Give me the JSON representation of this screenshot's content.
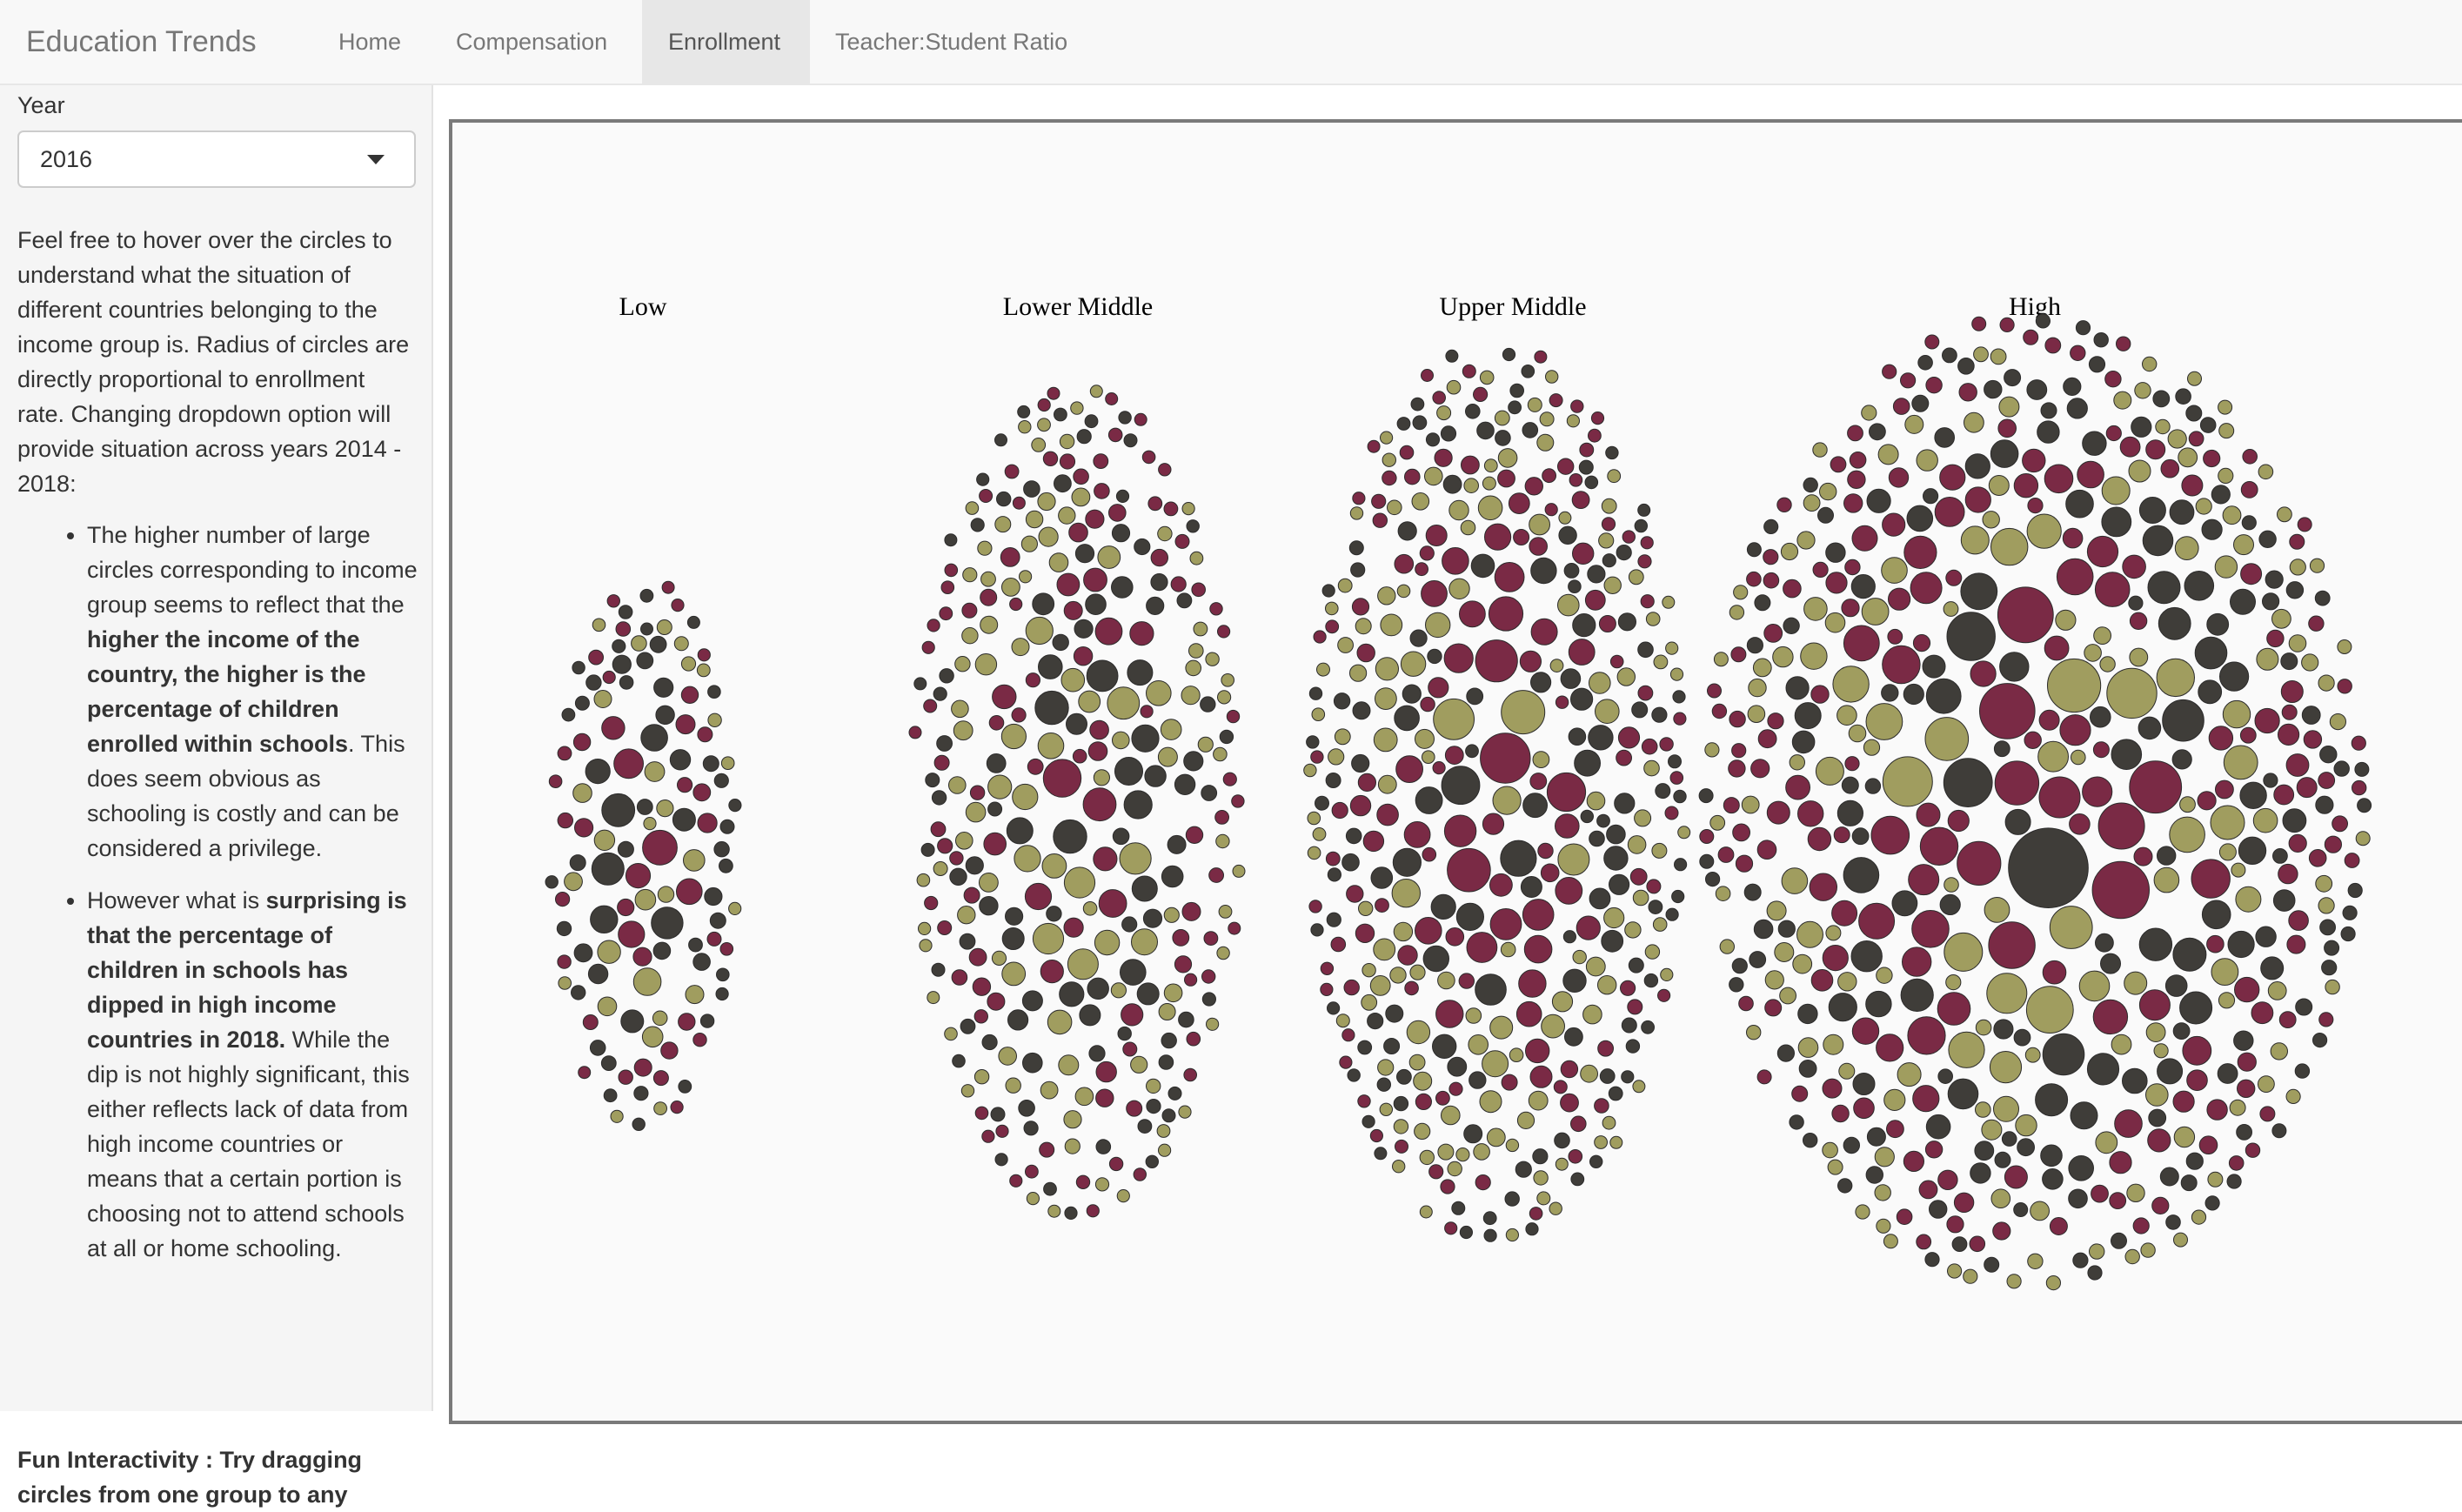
{
  "navbar": {
    "brand": "Education Trends",
    "tabs": [
      {
        "label": "Home",
        "active": false
      },
      {
        "label": "Compensation",
        "active": false
      },
      {
        "label": "Enrollment",
        "active": true
      },
      {
        "label": "Teacher:Student Ratio",
        "active": false
      }
    ]
  },
  "sidebar": {
    "year_label": "Year",
    "year_selected": "2016",
    "intro_text": "Feel free to hover over the circles to understand what the situation of different countries belonging to the income group is. Radius of circles are directly proportional to enrollment rate. Changing dropdown option will provide situation across years 2014 - 2018:",
    "bullet1": {
      "pre": "The higher number of large circles corresponding to income group seems to reflect that the ",
      "bold": "higher the income of the country, the higher is the percentage of children enrolled within schools",
      "post": ". This does seem obvious as schooling is costly and can be considered a privilege."
    },
    "bullet2": {
      "pre": "However what is ",
      "bold": "surprising is that the percentage of children in schools has dipped in high income countries in 2018.",
      "post": " While the dip is not highly significant, this either reflects lack of data from high income countries or means that a certain portion is choosing not to attend schools at all or home schooling."
    },
    "fun_text": "Fun Interactivity : Try dragging circles from one group to any"
  },
  "colors": {
    "olive": "#a09d5f",
    "maroon": "#7a2a45",
    "dark": "#3f3d39",
    "stroke": "#2b2b2b",
    "frame": "#7a7a7a"
  },
  "chart_data": {
    "type": "bubble-cluster",
    "encoding": "circle radius proportional to enrollment rate; one circle per country",
    "categories": [
      "Low",
      "Lower Middle",
      "Upper Middle",
      "High"
    ],
    "approx_country_counts": [
      60,
      150,
      200,
      270
    ],
    "series_colors": [
      "#a09d5f",
      "#7a2a45",
      "#3f3d39"
    ]
  }
}
